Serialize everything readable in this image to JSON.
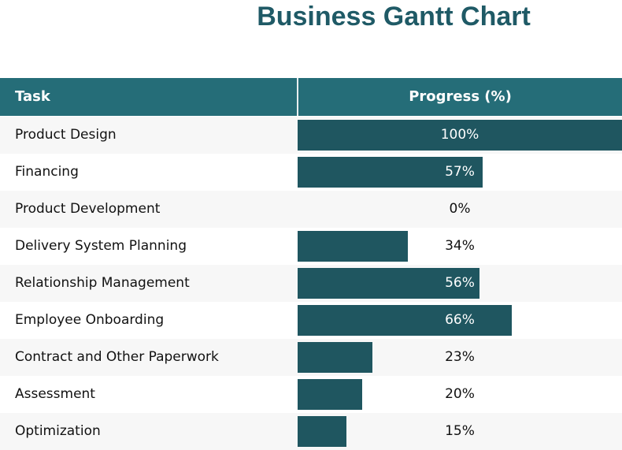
{
  "chart_data": {
    "type": "table",
    "title": "Business Gantt Chart",
    "columns": [
      "Task",
      "Progress (%)"
    ],
    "categories": [
      "Product Design",
      "Financing",
      "Product Development",
      "Delivery System Planning",
      "Relationship Management",
      "Employee Onboarding",
      "Contract and Other Paperwork",
      "Assessment",
      "Optimization"
    ],
    "values": [
      100,
      57,
      0,
      34,
      56,
      66,
      23,
      20,
      15
    ],
    "value_labels": [
      "100%",
      "57%",
      "0%",
      "34%",
      "56%",
      "66%",
      "23%",
      "20%",
      "15%"
    ],
    "colors": {
      "header": "#256d78",
      "bar": "#1f5660",
      "title": "#1f5a66"
    }
  }
}
